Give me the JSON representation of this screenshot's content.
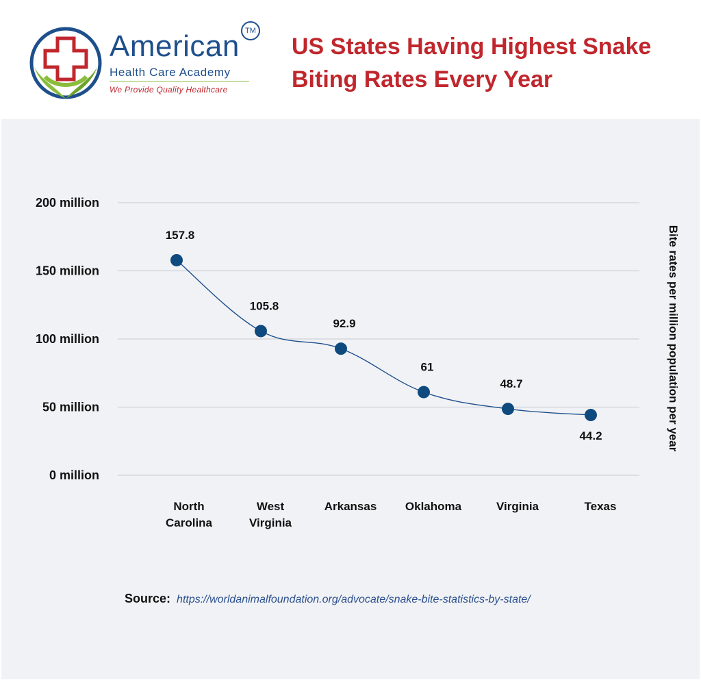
{
  "brand": {
    "name": "American",
    "tm": "TM",
    "subtitle": "Health Care Academy",
    "tagline": "We Provide Quality Healthcare"
  },
  "title": "US States Having Highest Snake Biting Rates Every Year",
  "colors": {
    "title": "#c0272d",
    "brand": "#1e4f8c",
    "line": "#1e4f8c",
    "marker": "#0f4a7e",
    "leaf": "#8bbd3c",
    "panel": "#f1f2f5",
    "grid": "#cfd2d8"
  },
  "chart_data": {
    "type": "line",
    "categories": [
      "North Carolina",
      "West Virginia",
      "Arkansas",
      "Oklahoma",
      "Virginia",
      "Texas"
    ],
    "category_labels": [
      [
        "North",
        "Carolina"
      ],
      [
        "West",
        "Virginia"
      ],
      [
        "Arkansas"
      ],
      [
        "Oklahoma"
      ],
      [
        "Virginia"
      ],
      [
        "Texas"
      ]
    ],
    "values": [
      157.8,
      105.8,
      92.9,
      61,
      48.7,
      44.2
    ],
    "data_labels": [
      "157.8",
      "105.8",
      "92.9",
      "61",
      "48.7",
      "44.2"
    ],
    "ylabel": "Bite rates per million population per year",
    "ylim": [
      0,
      200
    ],
    "yticks": [
      0,
      50,
      100,
      150,
      200
    ],
    "ytick_labels": [
      "0 million",
      "50 million",
      "100 million",
      "150 million",
      "200 million"
    ],
    "grid": true,
    "smooth": true
  },
  "source": {
    "label": "Source:",
    "url": "https://worldanimalfoundation.org/advocate/snake-bite-statistics-by-state/"
  }
}
